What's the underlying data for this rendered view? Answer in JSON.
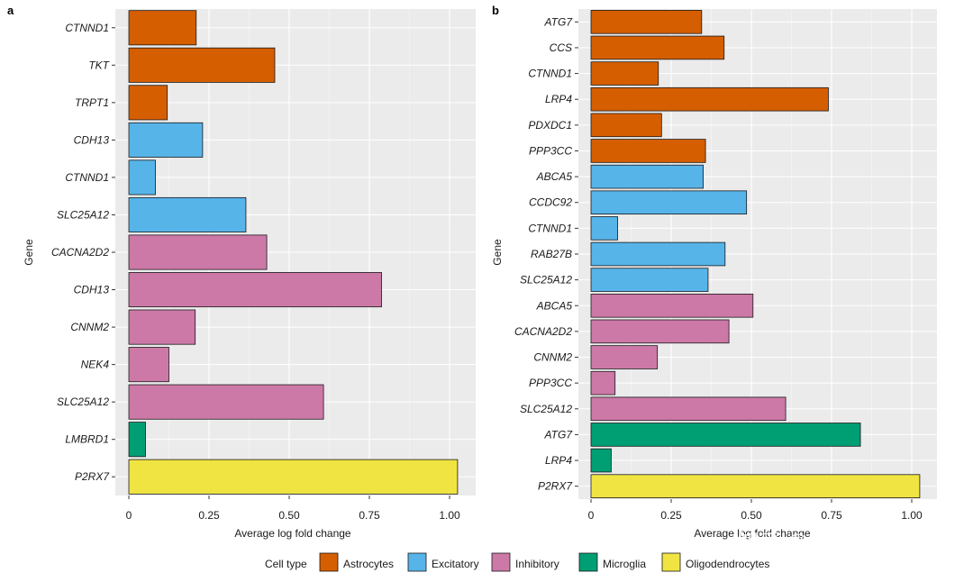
{
  "legend": {
    "title": "Cell type",
    "items": [
      {
        "label": "Astrocytes",
        "color": "#d55e00"
      },
      {
        "label": "Excitatory",
        "color": "#56b4e9"
      },
      {
        "label": "Inhibitory",
        "color": "#cc79a7"
      },
      {
        "label": "Microglia",
        "color": "#009e73"
      },
      {
        "label": "Oligodendrocytes",
        "color": "#f0e442"
      }
    ]
  },
  "watermark": "知乎 @逻辑神经",
  "chart_data": [
    {
      "panel": "a",
      "type": "bar",
      "orientation": "horizontal",
      "xlabel": "Average log fold change",
      "ylabel": "Gene",
      "xlim": [
        0,
        1.07
      ],
      "xticks": [
        0,
        0.25,
        0.5,
        0.75,
        1.0
      ],
      "xtick_labels": [
        "0",
        "0.25",
        "0.50",
        "0.75",
        "1.00"
      ],
      "grid": true,
      "bars": [
        {
          "gene": "CTNND1",
          "value": 0.21,
          "cell_type": "Astrocytes"
        },
        {
          "gene": "TKT",
          "value": 0.455,
          "cell_type": "Astrocytes"
        },
        {
          "gene": "TRPT1",
          "value": 0.12,
          "cell_type": "Astrocytes"
        },
        {
          "gene": "CDH13",
          "value": 0.23,
          "cell_type": "Excitatory"
        },
        {
          "gene": "CTNND1",
          "value": 0.083,
          "cell_type": "Excitatory"
        },
        {
          "gene": "SLC25A12",
          "value": 0.365,
          "cell_type": "Excitatory"
        },
        {
          "gene": "CACNA2D2",
          "value": 0.43,
          "cell_type": "Inhibitory"
        },
        {
          "gene": "CDH13",
          "value": 0.788,
          "cell_type": "Inhibitory"
        },
        {
          "gene": "CNNM2",
          "value": 0.207,
          "cell_type": "Inhibitory"
        },
        {
          "gene": "NEK4",
          "value": 0.125,
          "cell_type": "Inhibitory"
        },
        {
          "gene": "SLC25A12",
          "value": 0.607,
          "cell_type": "Inhibitory"
        },
        {
          "gene": "LMBRD1",
          "value": 0.052,
          "cell_type": "Microglia"
        },
        {
          "gene": "P2RX7",
          "value": 1.025,
          "cell_type": "Oligodendrocytes"
        }
      ]
    },
    {
      "panel": "b",
      "type": "bar",
      "orientation": "horizontal",
      "xlabel": "Average log fold change",
      "ylabel": "Gene",
      "xlim": [
        0,
        1.085
      ],
      "xticks": [
        0,
        0.25,
        0.5,
        0.75,
        1.0
      ],
      "xtick_labels": [
        "0",
        "0.25",
        "0.50",
        "0.75",
        "1.00"
      ],
      "grid": true,
      "bars": [
        {
          "gene": "ATG7",
          "value": 0.345,
          "cell_type": "Astrocytes"
        },
        {
          "gene": "CCS",
          "value": 0.415,
          "cell_type": "Astrocytes"
        },
        {
          "gene": "CTNND1",
          "value": 0.21,
          "cell_type": "Astrocytes"
        },
        {
          "gene": "LRP4",
          "value": 0.74,
          "cell_type": "Astrocytes"
        },
        {
          "gene": "PDXDC1",
          "value": 0.22,
          "cell_type": "Astrocytes"
        },
        {
          "gene": "PPP3CC",
          "value": 0.357,
          "cell_type": "Astrocytes"
        },
        {
          "gene": "ABCA5",
          "value": 0.35,
          "cell_type": "Excitatory"
        },
        {
          "gene": "CCDC92",
          "value": 0.485,
          "cell_type": "Excitatory"
        },
        {
          "gene": "CTNND1",
          "value": 0.083,
          "cell_type": "Excitatory"
        },
        {
          "gene": "RAB27B",
          "value": 0.418,
          "cell_type": "Excitatory"
        },
        {
          "gene": "SLC25A12",
          "value": 0.365,
          "cell_type": "Excitatory"
        },
        {
          "gene": "ABCA5",
          "value": 0.505,
          "cell_type": "Inhibitory"
        },
        {
          "gene": "CACNA2D2",
          "value": 0.43,
          "cell_type": "Inhibitory"
        },
        {
          "gene": "CNNM2",
          "value": 0.207,
          "cell_type": "Inhibitory"
        },
        {
          "gene": "PPP3CC",
          "value": 0.075,
          "cell_type": "Inhibitory"
        },
        {
          "gene": "SLC25A12",
          "value": 0.607,
          "cell_type": "Inhibitory"
        },
        {
          "gene": "ATG7",
          "value": 0.84,
          "cell_type": "Microglia"
        },
        {
          "gene": "LRP4",
          "value": 0.063,
          "cell_type": "Microglia"
        },
        {
          "gene": "P2RX7",
          "value": 1.025,
          "cell_type": "Oligodendrocytes"
        }
      ]
    }
  ]
}
